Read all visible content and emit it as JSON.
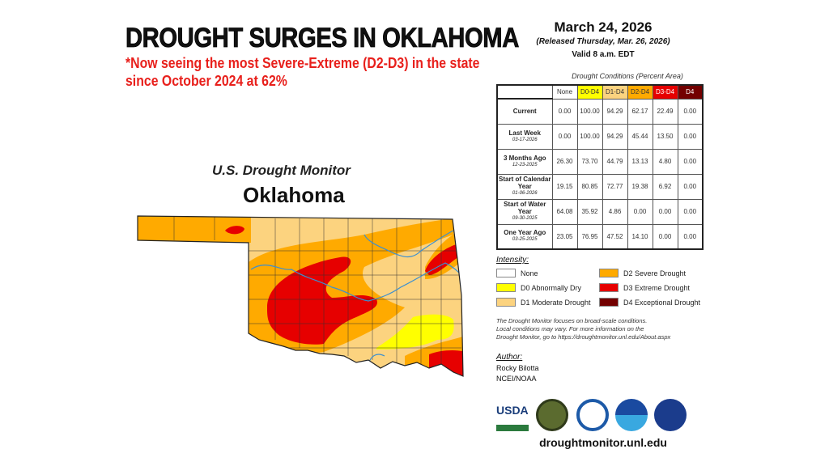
{
  "headline": "DROUGHT SURGES IN OKLAHOMA",
  "subheadline": [
    "*Now seeing the most Severe-Extreme (D2-D3) in the state",
    "since October 2024 at 62%"
  ],
  "map": {
    "title": "U.S. Drought Monitor",
    "state": "Oklahoma"
  },
  "report": {
    "date": "March 24, 2026",
    "released": "(Released Thursday, Mar. 26, 2026)",
    "valid": "Valid 8 a.m. EDT"
  },
  "table": {
    "title": "Drought Conditions (Percent Area)",
    "columns": [
      "None",
      "D0-D4",
      "D1-D4",
      "D2-D4",
      "D3-D4",
      "D4"
    ],
    "rows": [
      {
        "label": "Current",
        "date": "",
        "values": [
          "0.00",
          "100.00",
          "94.29",
          "62.17",
          "22.49",
          "0.00"
        ]
      },
      {
        "label": "Last Week",
        "date": "03-17-2026",
        "values": [
          "0.00",
          "100.00",
          "94.29",
          "45.44",
          "13.50",
          "0.00"
        ]
      },
      {
        "label": "3 Months Ago",
        "date": "12-23-2025",
        "values": [
          "26.30",
          "73.70",
          "44.79",
          "13.13",
          "4.80",
          "0.00"
        ]
      },
      {
        "label": "Start of Calendar Year",
        "date": "01-06-2026",
        "values": [
          "19.15",
          "80.85",
          "72.77",
          "19.38",
          "6.92",
          "0.00"
        ]
      },
      {
        "label": "Start of Water Year",
        "date": "09-30-2025",
        "values": [
          "64.08",
          "35.92",
          "4.86",
          "0.00",
          "0.00",
          "0.00"
        ]
      },
      {
        "label": "One Year Ago",
        "date": "03-25-2025",
        "values": [
          "23.05",
          "76.95",
          "47.52",
          "14.10",
          "0.00",
          "0.00"
        ]
      }
    ]
  },
  "legend": {
    "title": "Intensity:",
    "items": [
      {
        "label": "None",
        "color": "#ffffff"
      },
      {
        "label": "D0 Abnormally Dry",
        "color": "#ffff00"
      },
      {
        "label": "D1 Moderate Drought",
        "color": "#fcd37f"
      },
      {
        "label": "D2 Severe Drought",
        "color": "#ffaa00"
      },
      {
        "label": "D3 Extreme Drought",
        "color": "#e60000"
      },
      {
        "label": "D4 Exceptional Drought",
        "color": "#730000"
      }
    ]
  },
  "note": [
    "The Drought Monitor focuses on broad-scale conditions.",
    "Local conditions may vary. For more information on the",
    "Drought Monitor, go to https://droughtmonitor.unl.edu/About.aspx"
  ],
  "author": {
    "heading": "Author:",
    "name": "Rocky Bilotta",
    "org": "NCEI/NOAA"
  },
  "logos": [
    "USDA",
    "NDMC",
    "Commerce seal",
    "NOAA",
    "NASA"
  ],
  "site": "droughtmonitor.unl.edu"
}
